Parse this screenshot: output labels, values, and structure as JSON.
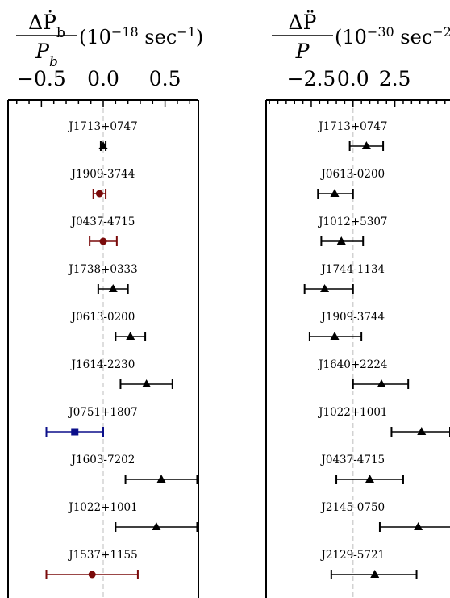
{
  "chart_data": [
    {
      "type": "errorbar",
      "title_latex": "ΔṖ_b/P_b (10^-18 sec^-1)",
      "title": {
        "num": "ΔṖ",
        "num_sub": "b",
        "den": "P",
        "den_sub": "b",
        "unit": "(10",
        "unit_exp": "−18",
        "unit_tail": " sec",
        "unit_tail_exp": "−1",
        "unit_close": ")"
      },
      "xlim": [
        -0.77,
        0.77
      ],
      "xticks": [
        "−0.5",
        "0.0",
        "0.5"
      ],
      "xtick_values": [
        -0.5,
        0.0,
        0.5
      ],
      "reference_line": 0.0,
      "grid": false,
      "points": [
        {
          "name": "J1713+0747",
          "value": 0.0,
          "lo": -0.02,
          "hi": 0.02,
          "marker": "triangle",
          "color": "#000000"
        },
        {
          "name": "J1909-3744",
          "value": -0.03,
          "lo": -0.08,
          "hi": 0.02,
          "marker": "circle",
          "color": "#7a0a0a"
        },
        {
          "name": "J0437-4715",
          "value": 0.0,
          "lo": -0.11,
          "hi": 0.11,
          "marker": "circle",
          "color": "#7a0a0a"
        },
        {
          "name": "J1738+0333",
          "value": 0.08,
          "lo": -0.04,
          "hi": 0.2,
          "marker": "triangle",
          "color": "#000000"
        },
        {
          "name": "J0613-0200",
          "value": 0.22,
          "lo": 0.1,
          "hi": 0.34,
          "marker": "triangle",
          "color": "#000000"
        },
        {
          "name": "J1614-2230",
          "value": 0.35,
          "lo": 0.14,
          "hi": 0.56,
          "marker": "triangle",
          "color": "#000000"
        },
        {
          "name": "J0751+1807",
          "value": -0.23,
          "lo": -0.46,
          "hi": 0.0,
          "marker": "square",
          "color": "#0b0f8a"
        },
        {
          "name": "J1603-7202",
          "value": 0.47,
          "lo": 0.18,
          "hi": 0.76,
          "marker": "triangle",
          "color": "#000000"
        },
        {
          "name": "J1022+1001",
          "value": 0.43,
          "lo": 0.1,
          "hi": 0.76,
          "marker": "triangle",
          "color": "#000000"
        },
        {
          "name": "J1537+1155",
          "value": -0.09,
          "lo": -0.46,
          "hi": 0.28,
          "marker": "circle",
          "color": "#7a0a0a"
        }
      ]
    },
    {
      "type": "errorbar",
      "title_latex": "ΔP̈/P (10^-30 sec^-2)",
      "title": {
        "num": "ΔP̈",
        "num_sub": "",
        "den": "P",
        "den_sub": "",
        "unit": "(10",
        "unit_exp": "−30",
        "unit_tail": " sec",
        "unit_tail_exp": "−2",
        "unit_close": ")"
      },
      "xlim": [
        -5.2,
        5.8
      ],
      "xticks": [
        "−2.5",
        "0.0",
        "2.5"
      ],
      "xtick_values": [
        -2.5,
        0.0,
        2.5
      ],
      "reference_line": 0.0,
      "grid": false,
      "points": [
        {
          "name": "J1713+0747",
          "value": 0.8,
          "lo": -0.2,
          "hi": 1.8,
          "marker": "triangle",
          "color": "#000000"
        },
        {
          "name": "J0613-0200",
          "value": -1.1,
          "lo": -2.1,
          "hi": 0.0,
          "marker": "triangle",
          "color": "#000000"
        },
        {
          "name": "J1012+5307",
          "value": -0.7,
          "lo": -1.9,
          "hi": 0.6,
          "marker": "triangle",
          "color": "#000000"
        },
        {
          "name": "J1744-1134",
          "value": -1.7,
          "lo": -2.9,
          "hi": 0.0,
          "marker": "triangle",
          "color": "#000000"
        },
        {
          "name": "J1909-3744",
          "value": -1.1,
          "lo": -2.6,
          "hi": 0.5,
          "marker": "triangle",
          "color": "#000000"
        },
        {
          "name": "J1640+2224",
          "value": 1.7,
          "lo": 0.0,
          "hi": 3.3,
          "marker": "triangle",
          "color": "#000000"
        },
        {
          "name": "J1022+1001",
          "value": 4.1,
          "lo": 2.3,
          "hi": 5.8,
          "marker": "triangle",
          "color": "#000000"
        },
        {
          "name": "J0437-4715",
          "value": 1.0,
          "lo": -1.0,
          "hi": 3.0,
          "marker": "triangle",
          "color": "#000000"
        },
        {
          "name": "J2145-0750",
          "value": 3.9,
          "lo": 1.6,
          "hi": 6.1,
          "marker": "triangle",
          "color": "#000000"
        },
        {
          "name": "J2129-5721",
          "value": 1.3,
          "lo": -1.3,
          "hi": 3.8,
          "marker": "triangle",
          "color": "#000000"
        }
      ]
    }
  ]
}
